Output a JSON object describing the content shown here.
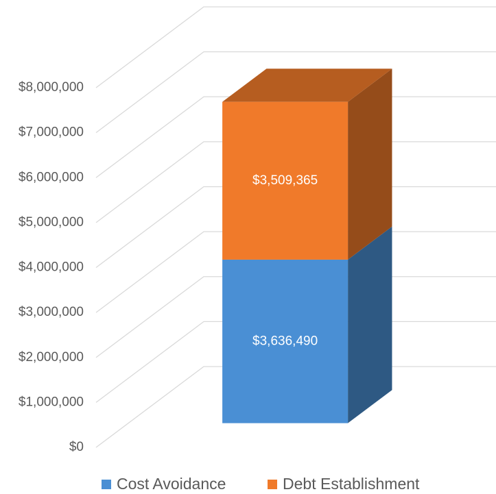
{
  "chart_data": {
    "type": "bar",
    "stacked": true,
    "three_d": true,
    "categories": [
      null
    ],
    "series": [
      {
        "name": "Cost Avoidance",
        "color": "#4a8fd4",
        "values": [
          3636490
        ],
        "value_labels": [
          "$3,636,490"
        ]
      },
      {
        "name": "Debt Establishment",
        "color": "#f07a2a",
        "values": [
          3509365
        ],
        "value_labels": [
          "$3,509,365"
        ]
      }
    ],
    "ylim": [
      0,
      8000000
    ],
    "yticks": [
      {
        "value": 0,
        "label": "$0"
      },
      {
        "value": 1000000,
        "label": "$1,000,000"
      },
      {
        "value": 2000000,
        "label": "$2,000,000"
      },
      {
        "value": 3000000,
        "label": "$3,000,000"
      },
      {
        "value": 4000000,
        "label": "$4,000,000"
      },
      {
        "value": 5000000,
        "label": "$5,000,000"
      },
      {
        "value": 6000000,
        "label": "$6,000,000"
      },
      {
        "value": 7000000,
        "label": "$7,000,000"
      },
      {
        "value": 8000000,
        "label": "$8,000,000"
      }
    ],
    "grid": true,
    "legend": "bottom"
  }
}
